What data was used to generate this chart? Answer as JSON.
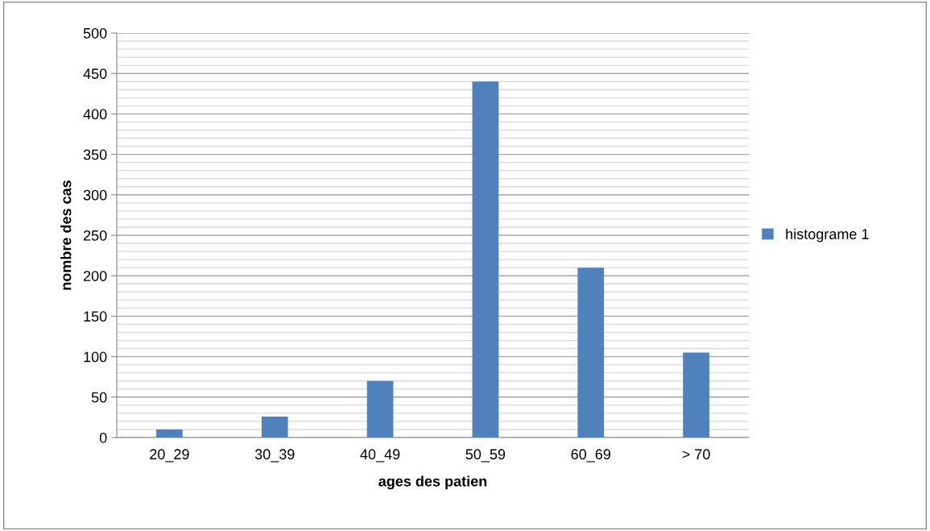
{
  "chart_data": {
    "type": "bar",
    "xlabel": "ages des patien",
    "ylabel": "nombre des cas",
    "categories": [
      "20_29",
      "30_39",
      "40_49",
      "50_59",
      "60_69",
      "> 70"
    ],
    "series": [
      {
        "name": "histograme 1",
        "color": "#4f81bd",
        "values": [
          10,
          26,
          70,
          440,
          210,
          105
        ]
      }
    ],
    "ylim": [
      0,
      500
    ],
    "yticks": [
      0,
      50,
      100,
      150,
      200,
      250,
      300,
      350,
      400,
      450,
      500
    ],
    "grid": "y",
    "legend": "right"
  }
}
